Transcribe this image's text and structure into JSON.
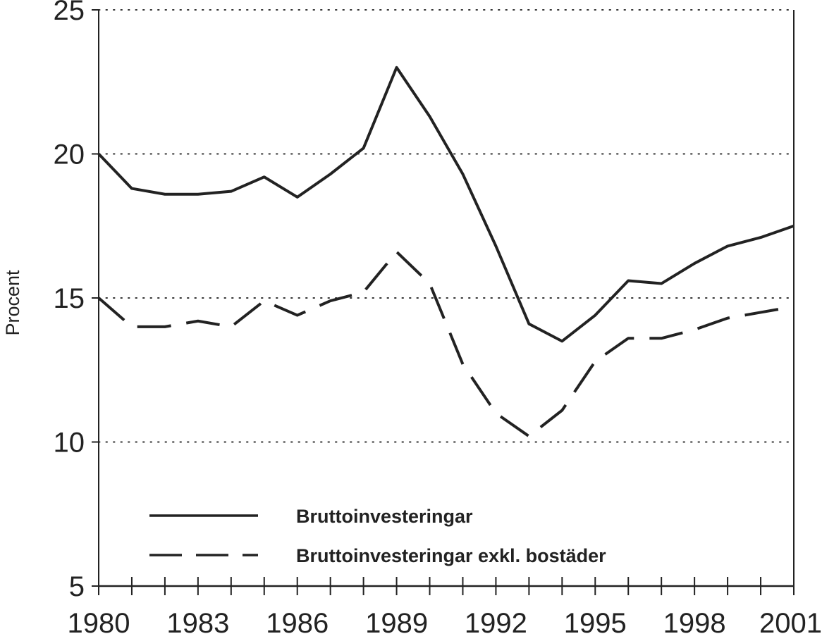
{
  "chart_data": {
    "type": "line",
    "title": "",
    "xlabel": "",
    "ylabel": "Procent",
    "x": [
      1980,
      1981,
      1982,
      1983,
      1984,
      1985,
      1986,
      1987,
      1988,
      1989,
      1990,
      1991,
      1992,
      1993,
      1994,
      1995,
      1996,
      1997,
      1998,
      1999,
      2000,
      2001
    ],
    "xticks": [
      "1980",
      "1983",
      "1986",
      "1989",
      "1992",
      "1995",
      "1998",
      "2001"
    ],
    "yticks": [
      "5",
      "10",
      "15",
      "20",
      "25"
    ],
    "xlim": [
      1980,
      2001
    ],
    "ylim": [
      5,
      25
    ],
    "grid": "horizontal dotted",
    "legend_position": "bottom-center",
    "series": [
      {
        "name": "Bruttoinvesteringar",
        "style": "solid",
        "values": [
          20.0,
          18.8,
          18.6,
          18.6,
          18.7,
          19.2,
          18.5,
          19.3,
          20.2,
          23.0,
          21.3,
          19.3,
          16.8,
          14.1,
          13.5,
          14.4,
          15.6,
          15.5,
          16.2,
          16.8,
          17.1,
          17.5
        ]
      },
      {
        "name": "Bruttoinvesteringar exkl. bostäder",
        "style": "dashed",
        "values": [
          15.0,
          14.0,
          14.0,
          14.2,
          14.0,
          14.9,
          14.4,
          14.9,
          15.2,
          16.6,
          15.5,
          12.7,
          11.0,
          10.2,
          11.1,
          12.8,
          13.6,
          13.6,
          13.9,
          14.3,
          14.5,
          14.7
        ]
      }
    ]
  },
  "colors": {
    "line": "#222222",
    "grid": "#333333",
    "background": "#ffffff"
  }
}
